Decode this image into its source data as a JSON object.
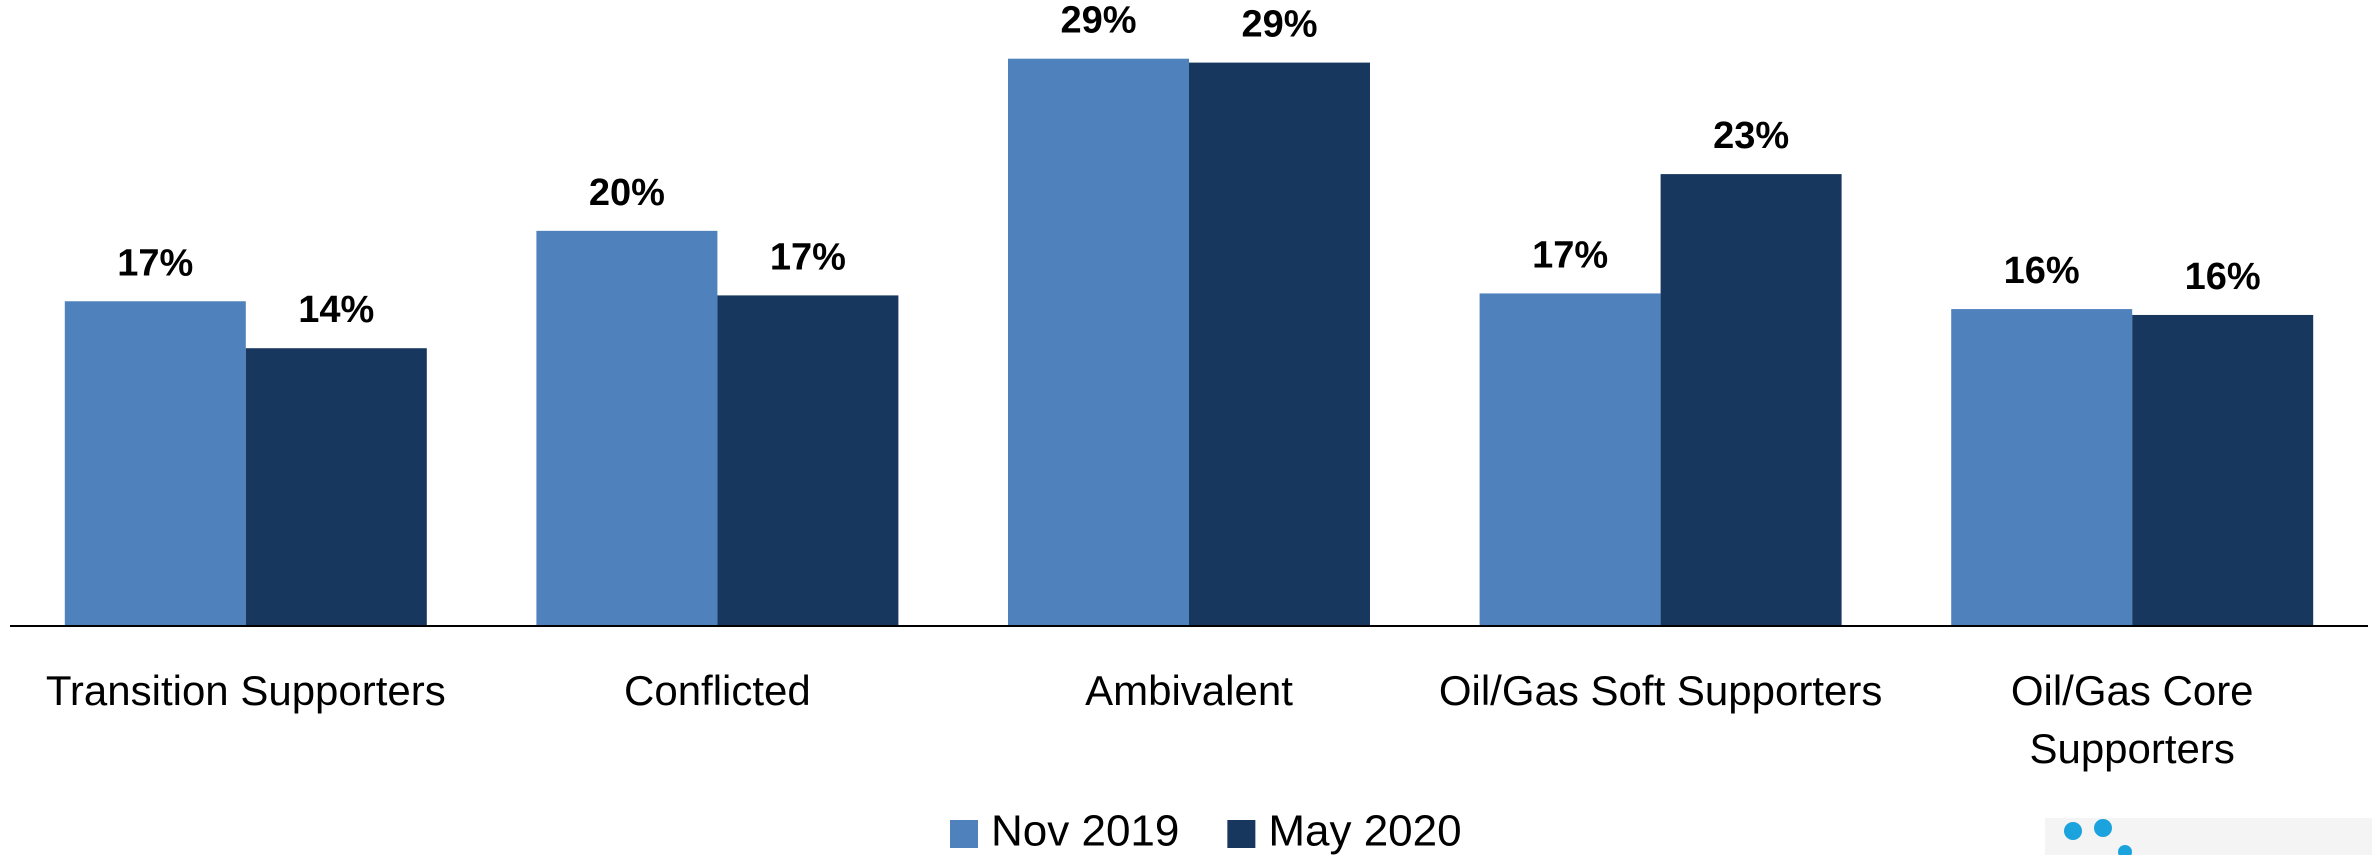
{
  "chart_data": {
    "type": "bar",
    "categories": [
      "Transition Supporters",
      "Conflicted",
      "Ambivalent",
      "Oil/Gas Soft Supporters",
      "Oil/Gas Core Supporters"
    ],
    "series": [
      {
        "name": "Nov 2019",
        "color": "#4f81bd",
        "values": [
          16.6,
          20.2,
          29.0,
          17.0,
          16.2
        ],
        "value_labels": [
          "17%",
          "20%",
          "29%",
          "17%",
          "16%"
        ]
      },
      {
        "name": "May 2020",
        "color": "#17375e",
        "values": [
          14.2,
          16.9,
          28.8,
          23.1,
          15.9
        ],
        "value_labels": [
          "14%",
          "17%",
          "29%",
          "23%",
          "16%"
        ]
      }
    ],
    "ylim": [
      0,
      32
    ],
    "grid": false,
    "legend": "bottom"
  }
}
